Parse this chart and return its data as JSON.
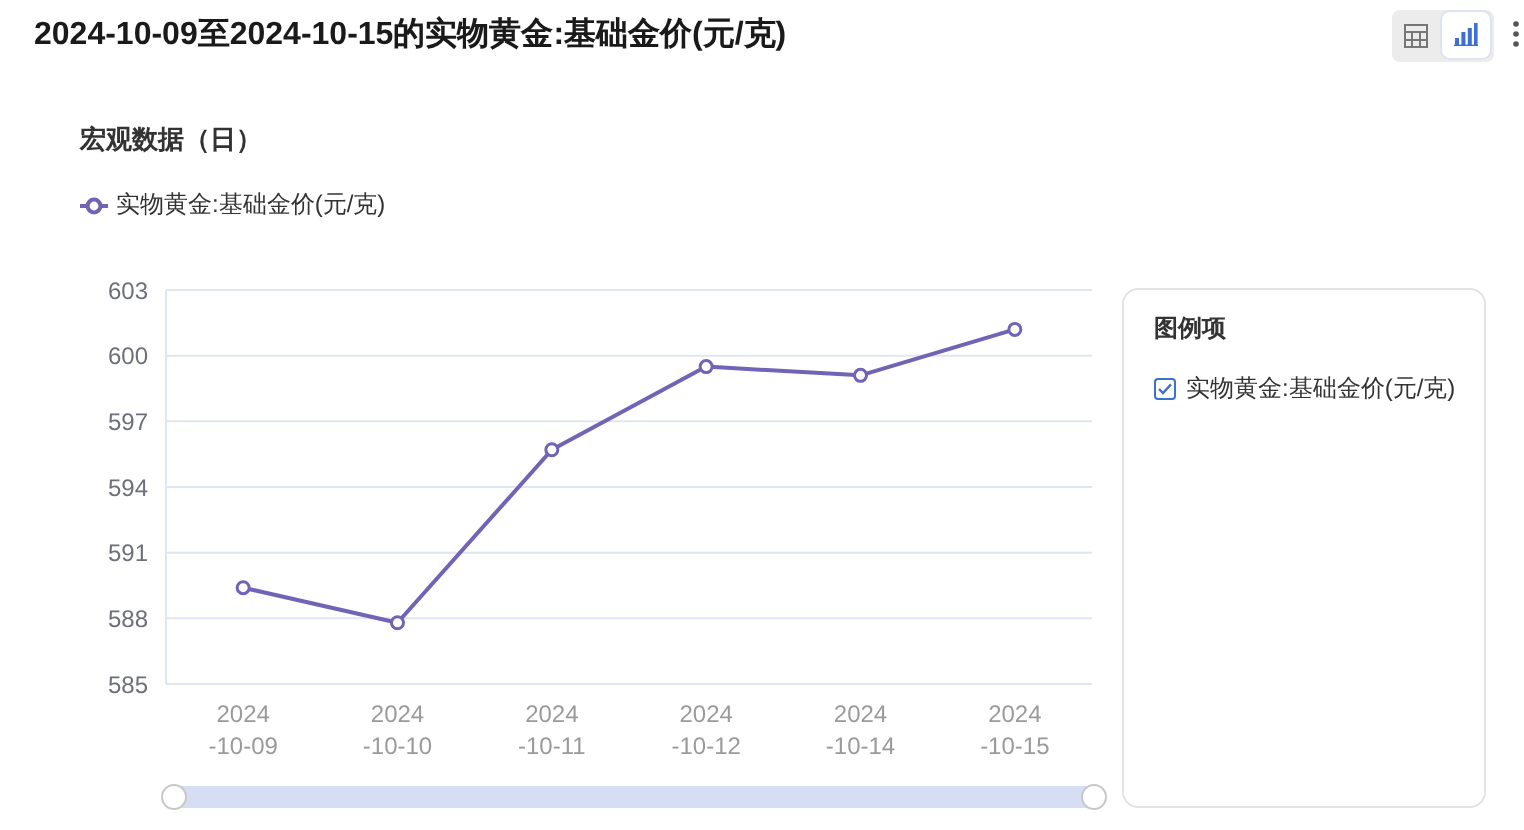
{
  "chart_data": {
    "type": "line",
    "title": "2024-10-09至2024-10-15的实物黄金:基础金价(元/克)",
    "subtitle": "宏观数据（日）",
    "legend_title": "图例项",
    "categories": [
      "2024-10-09",
      "2024-10-10",
      "2024-10-11",
      "2024-10-12",
      "2024-10-14",
      "2024-10-15"
    ],
    "series": [
      {
        "name": "实物黄金:基础金价(元/克)",
        "color": "#7163b5",
        "values": [
          589.4,
          587.8,
          595.7,
          599.5,
          599.1,
          601.2
        ]
      }
    ],
    "ylim": [
      585,
      603
    ],
    "yticks": [
      585,
      588,
      591,
      594,
      597,
      600,
      603
    ],
    "grid": "y",
    "legend": "top left",
    "marker": "circle"
  }
}
